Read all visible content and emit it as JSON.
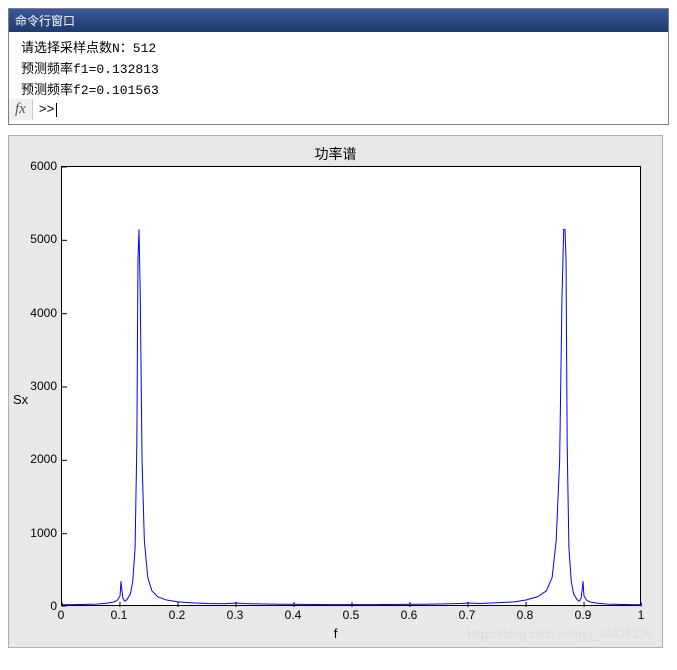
{
  "cmd": {
    "title": "命令行窗口",
    "lines": [
      "请选择采样点数N：512",
      "预测频率f1=0.132813",
      "预测频率f2=0.101563"
    ],
    "fx": "fx",
    "prompt": ">> "
  },
  "figure": {
    "title": "功率谱",
    "xlabel": "f",
    "ylabel": "Sx",
    "background": "#e8e8e8",
    "plot_bg": "#ffffff",
    "line_color": "#0000ff",
    "line_width": 1,
    "xlim": [
      0,
      1
    ],
    "ylim": [
      0,
      6000
    ],
    "xticks": [
      0,
      0.1,
      0.2,
      0.3,
      0.4,
      0.5,
      0.6,
      0.7,
      0.8,
      0.9,
      1
    ],
    "yticks": [
      0,
      1000,
      2000,
      3000,
      4000,
      5000,
      6000
    ],
    "title_fontsize": 14,
    "label_fontsize": 13,
    "tick_fontsize": 12,
    "data": [
      [
        0.0,
        30
      ],
      [
        0.02,
        32
      ],
      [
        0.04,
        35
      ],
      [
        0.06,
        40
      ],
      [
        0.08,
        55
      ],
      [
        0.09,
        70
      ],
      [
        0.095,
        90
      ],
      [
        0.1,
        150
      ],
      [
        0.101,
        250
      ],
      [
        0.1016,
        350
      ],
      [
        0.103,
        250
      ],
      [
        0.105,
        120
      ],
      [
        0.108,
        80
      ],
      [
        0.112,
        100
      ],
      [
        0.118,
        180
      ],
      [
        0.122,
        350
      ],
      [
        0.126,
        800
      ],
      [
        0.129,
        2200
      ],
      [
        0.131,
        4750
      ],
      [
        0.1328,
        5150
      ],
      [
        0.135,
        4200
      ],
      [
        0.138,
        2000
      ],
      [
        0.142,
        900
      ],
      [
        0.148,
        400
      ],
      [
        0.155,
        220
      ],
      [
        0.165,
        140
      ],
      [
        0.18,
        95
      ],
      [
        0.2,
        70
      ],
      [
        0.22,
        58
      ],
      [
        0.25,
        48
      ],
      [
        0.28,
        45
      ],
      [
        0.3,
        55
      ],
      [
        0.31,
        48
      ],
      [
        0.34,
        42
      ],
      [
        0.38,
        38
      ],
      [
        0.42,
        35
      ],
      [
        0.46,
        33
      ],
      [
        0.5,
        32
      ],
      [
        0.54,
        33
      ],
      [
        0.58,
        35
      ],
      [
        0.62,
        38
      ],
      [
        0.66,
        42
      ],
      [
        0.69,
        48
      ],
      [
        0.7,
        55
      ],
      [
        0.72,
        48
      ],
      [
        0.75,
        58
      ],
      [
        0.78,
        70
      ],
      [
        0.8,
        95
      ],
      [
        0.82,
        140
      ],
      [
        0.835,
        220
      ],
      [
        0.845,
        400
      ],
      [
        0.852,
        900
      ],
      [
        0.858,
        2000
      ],
      [
        0.862,
        4200
      ],
      [
        0.865,
        5150
      ],
      [
        0.8672,
        5150
      ],
      [
        0.869,
        4750
      ],
      [
        0.871,
        2200
      ],
      [
        0.874,
        800
      ],
      [
        0.878,
        350
      ],
      [
        0.882,
        180
      ],
      [
        0.888,
        100
      ],
      [
        0.892,
        80
      ],
      [
        0.895,
        120
      ],
      [
        0.897,
        250
      ],
      [
        0.8984,
        350
      ],
      [
        0.899,
        250
      ],
      [
        0.9,
        150
      ],
      [
        0.905,
        90
      ],
      [
        0.91,
        70
      ],
      [
        0.92,
        55
      ],
      [
        0.94,
        40
      ],
      [
        0.96,
        35
      ],
      [
        0.98,
        32
      ],
      [
        1.0,
        30
      ]
    ]
  },
  "watermark": "https://blog.csdn.net/qq_44628230"
}
